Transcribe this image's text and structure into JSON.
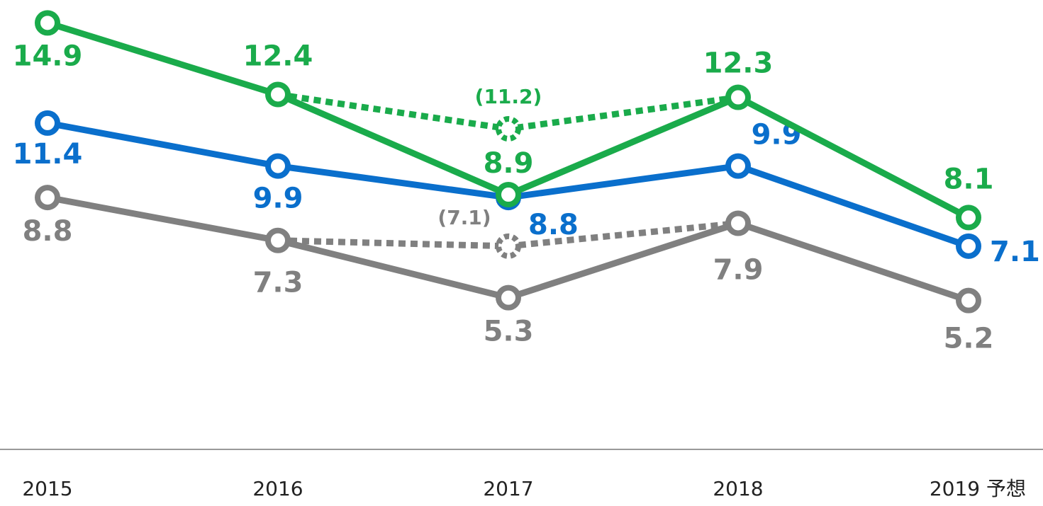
{
  "chart_data": {
    "type": "line",
    "categories": [
      "2015",
      "2016",
      "2017",
      "2018",
      "2019 予想"
    ],
    "ylim": [
      0,
      15.7
    ],
    "series": [
      {
        "color": "#1aab4b",
        "values": [
          14.9,
          12.4,
          8.9,
          12.3,
          8.1
        ]
      },
      {
        "color": "#0a6fcc",
        "values": [
          11.4,
          9.9,
          8.8,
          9.9,
          7.1
        ]
      },
      {
        "color": "#808080",
        "values": [
          8.8,
          7.3,
          5.3,
          7.9,
          5.2
        ]
      },
      {
        "color": "#1aab4b",
        "dashed": true,
        "values": [
          null,
          12.4,
          11.2,
          12.3,
          null
        ],
        "value_labels": [
          null,
          null,
          "(11.2)",
          null,
          null
        ]
      },
      {
        "color": "#808080",
        "dashed": true,
        "values": [
          null,
          7.3,
          7.1,
          7.9,
          null
        ],
        "value_labels": [
          null,
          null,
          "(7.1)",
          null,
          null
        ]
      }
    ]
  }
}
